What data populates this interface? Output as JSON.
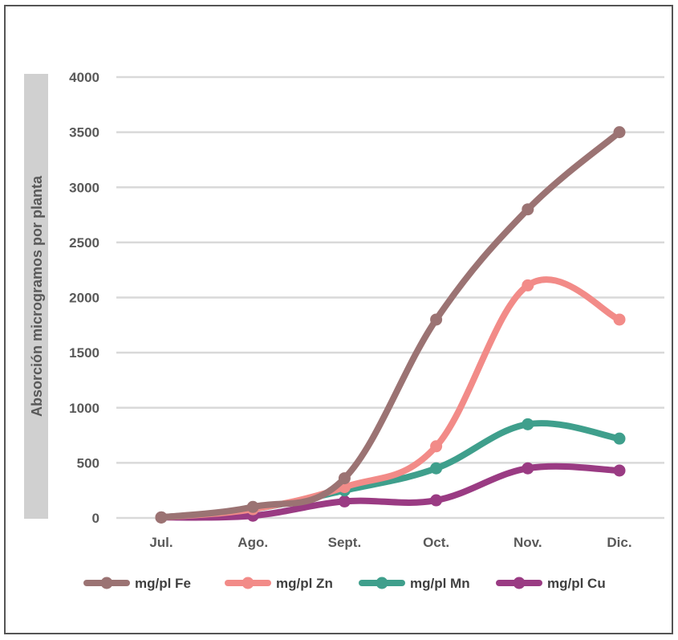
{
  "chart_data": {
    "type": "line",
    "title": "",
    "xlabel": "",
    "ylabel": "Absorción microgramos por planta",
    "categories": [
      "Jul.",
      "Ago.",
      "Sept.",
      "Oct.",
      "Nov.",
      "Dic."
    ],
    "ylim": [
      0,
      4000
    ],
    "yticks": [
      0,
      500,
      1000,
      1500,
      2000,
      2500,
      3000,
      3500,
      4000
    ],
    "grid": true,
    "legend": "bottom",
    "series": [
      {
        "name": "mg/pl Fe",
        "color": "#9b7373",
        "values": [
          5,
          100,
          360,
          1800,
          2800,
          3500
        ]
      },
      {
        "name": "mg/pl Zn",
        "color": "#f28b88",
        "values": [
          5,
          80,
          280,
          650,
          2110,
          1800
        ]
      },
      {
        "name": "mg/pl Mn",
        "color": "#3f9f8c",
        "values": [
          5,
          80,
          250,
          450,
          850,
          720
        ]
      },
      {
        "name": "mg/pl Cu",
        "color": "#9a3b83",
        "values": [
          5,
          20,
          150,
          160,
          450,
          430
        ]
      }
    ]
  }
}
